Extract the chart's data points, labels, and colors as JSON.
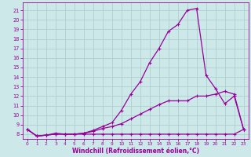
{
  "xlabel": "Windchill (Refroidissement éolien,°C)",
  "xlim": [
    -0.5,
    23.5
  ],
  "ylim": [
    7.5,
    21.8
  ],
  "xticks": [
    0,
    1,
    2,
    3,
    4,
    5,
    6,
    7,
    8,
    9,
    10,
    11,
    12,
    13,
    14,
    15,
    16,
    17,
    18,
    19,
    20,
    21,
    22,
    23
  ],
  "yticks": [
    8,
    9,
    10,
    11,
    12,
    13,
    14,
    15,
    16,
    17,
    18,
    19,
    20,
    21
  ],
  "bg_color": "#cce8e8",
  "line_color": "#990099",
  "grid_color": "#aacccc",
  "line1_x": [
    0,
    1,
    2,
    3,
    4,
    5,
    6,
    7,
    8,
    9,
    10,
    11,
    12,
    13,
    14,
    15,
    16,
    17,
    18,
    19,
    20,
    21,
    22,
    23
  ],
  "line1_y": [
    8.5,
    7.8,
    7.9,
    8.1,
    8.0,
    8.0,
    8.1,
    8.4,
    8.8,
    9.2,
    10.5,
    12.2,
    13.5,
    15.5,
    17.0,
    18.8,
    19.5,
    21.0,
    21.2,
    14.2,
    12.8,
    11.2,
    12.0,
    8.5
  ],
  "line2_x": [
    0,
    1,
    2,
    3,
    4,
    5,
    6,
    7,
    8,
    9,
    10,
    11,
    12,
    13,
    14,
    15,
    16,
    17,
    18,
    19,
    20,
    21,
    22,
    23
  ],
  "line2_y": [
    8.5,
    7.8,
    7.9,
    8.0,
    8.0,
    8.0,
    8.1,
    8.3,
    8.6,
    8.8,
    9.1,
    9.6,
    10.1,
    10.6,
    11.1,
    11.5,
    11.5,
    11.5,
    12.0,
    12.0,
    12.2,
    12.5,
    12.2,
    8.5
  ],
  "line3_x": [
    0,
    1,
    2,
    3,
    4,
    5,
    6,
    7,
    8,
    9,
    10,
    11,
    12,
    13,
    14,
    15,
    16,
    17,
    18,
    19,
    20,
    21,
    22,
    23
  ],
  "line3_y": [
    8.5,
    7.8,
    7.9,
    8.0,
    8.0,
    8.0,
    8.0,
    8.0,
    8.0,
    8.0,
    8.0,
    8.0,
    8.0,
    8.0,
    8.0,
    8.0,
    8.0,
    8.0,
    8.0,
    8.0,
    8.0,
    8.0,
    8.0,
    8.5
  ]
}
